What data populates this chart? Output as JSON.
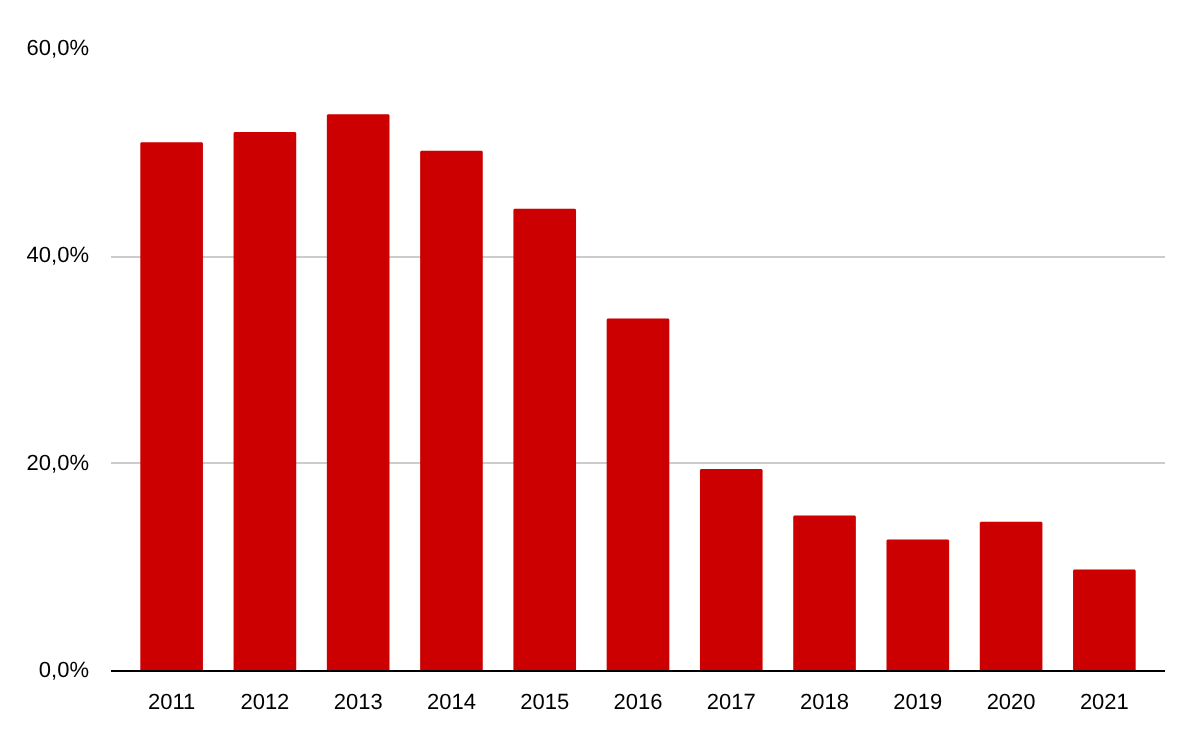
{
  "chart_data": {
    "type": "bar",
    "categories": [
      "2011",
      "2012",
      "2013",
      "2014",
      "2015",
      "2016",
      "2017",
      "2018",
      "2019",
      "2020",
      "2021"
    ],
    "values": [
      50.9,
      51.9,
      53.6,
      50.1,
      44.5,
      33.9,
      19.4,
      14.9,
      12.6,
      14.3,
      9.7
    ],
    "color": "#cc0000",
    "ylim": [
      0,
      60
    ],
    "yticks": [
      {
        "value": 0,
        "label": "0,0%"
      },
      {
        "value": 20,
        "label": "20,0%"
      },
      {
        "value": 40,
        "label": "40,0%"
      },
      {
        "value": 60,
        "label": "60,0%"
      }
    ],
    "grid": "y"
  }
}
